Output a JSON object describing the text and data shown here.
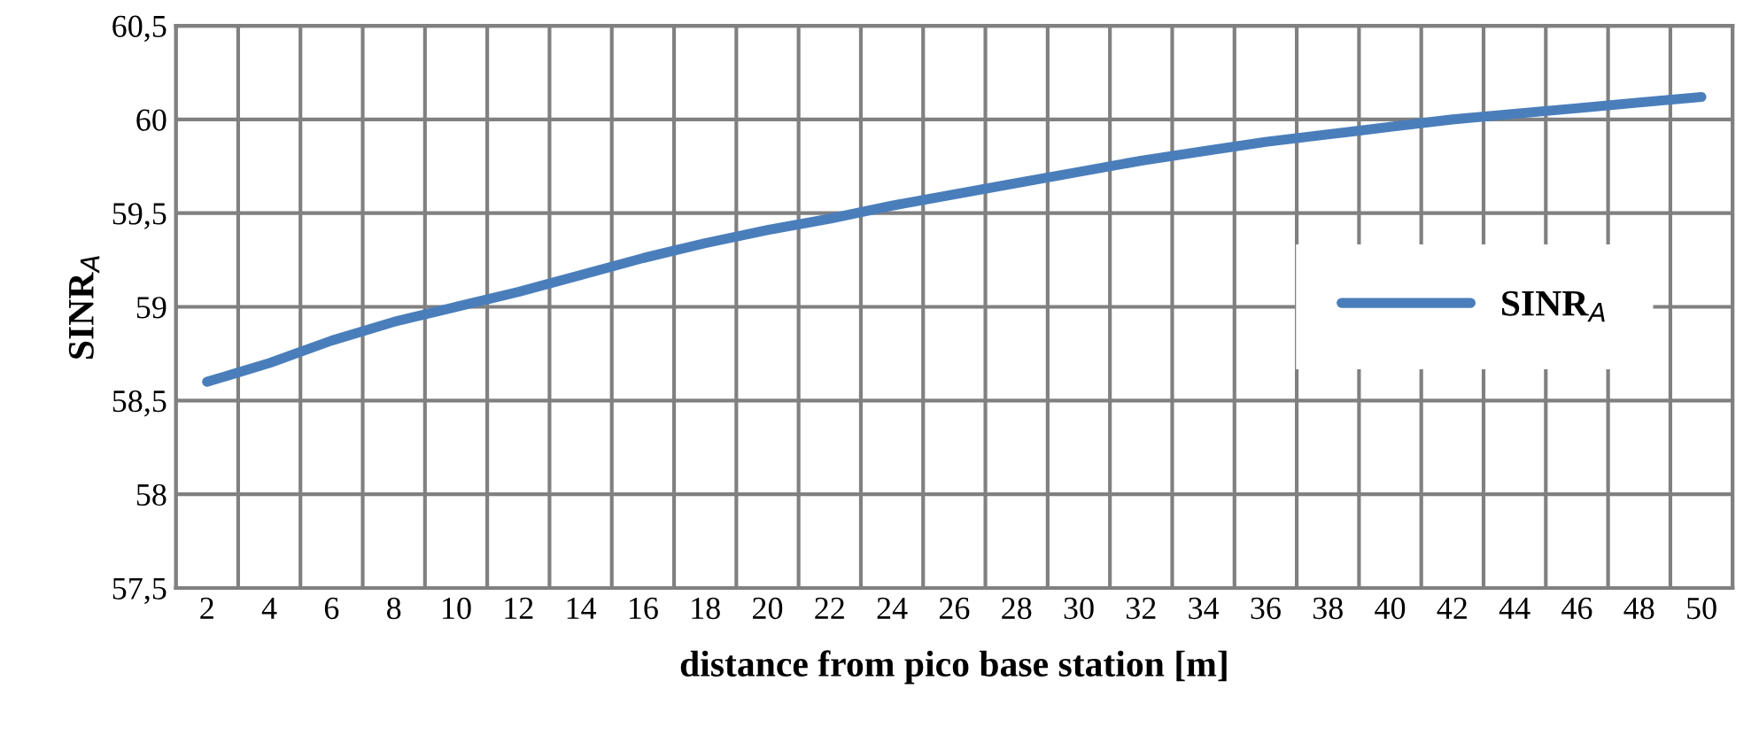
{
  "chart_data": {
    "type": "line",
    "xlabel": "distance from pico base station [m]",
    "ylabel": "SINR$_{A}$",
    "categories": [
      "2",
      "4",
      "6",
      "8",
      "10",
      "12",
      "14",
      "16",
      "18",
      "20",
      "22",
      "24",
      "26",
      "28",
      "30",
      "32",
      "34",
      "36",
      "38",
      "40",
      "42",
      "44",
      "46",
      "48",
      "50"
    ],
    "series": [
      {
        "name": "SINR$_{A}$",
        "color": "#4a7ebb",
        "values": [
          58.6,
          58.7,
          58.82,
          58.92,
          59.0,
          59.08,
          59.17,
          59.26,
          59.34,
          59.41,
          59.47,
          59.54,
          59.6,
          59.66,
          59.72,
          59.78,
          59.83,
          59.88,
          59.92,
          59.96,
          60.0,
          60.03,
          60.06,
          60.09,
          60.12
        ]
      }
    ],
    "ylim": [
      57.5,
      60.5
    ],
    "yticks": [
      {
        "value": 57.5,
        "label": "57,5"
      },
      58,
      {
        "value": 58.5,
        "label": "58,5"
      },
      59,
      {
        "value": 59.5,
        "label": "59,5"
      },
      60,
      {
        "value": 60.5,
        "label": "60,5"
      }
    ],
    "grid": true,
    "legend": "right",
    "marker": "none",
    "line_style": "solid"
  }
}
